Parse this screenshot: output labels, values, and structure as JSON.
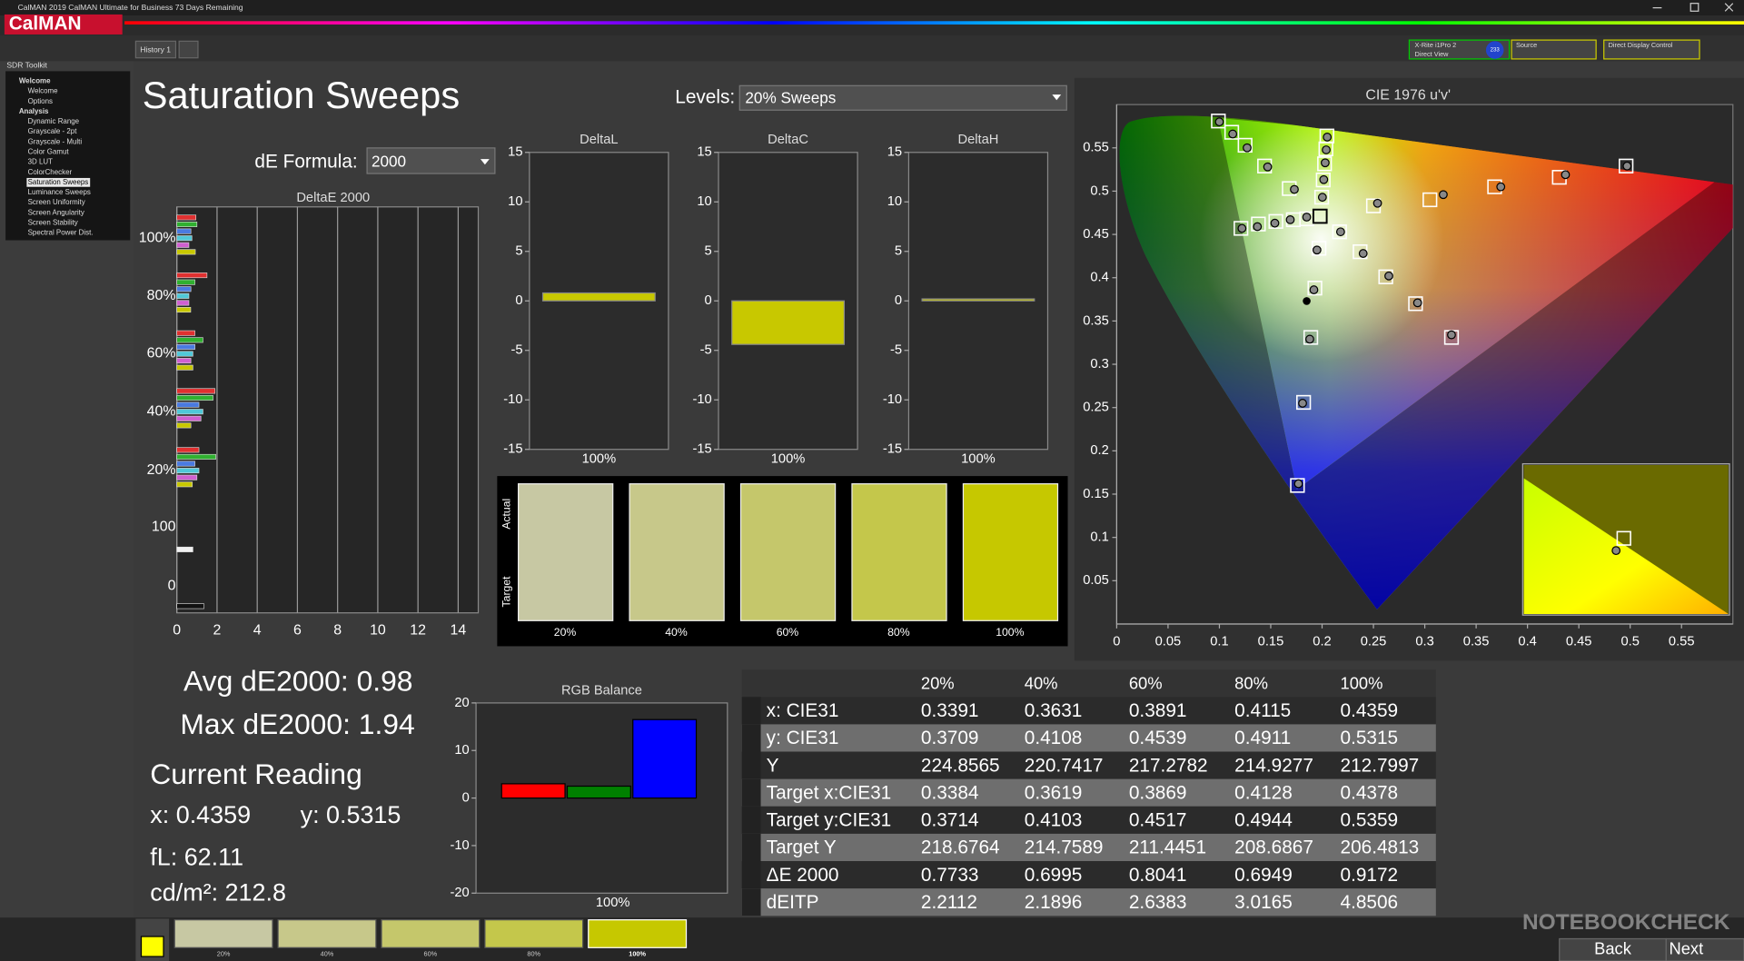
{
  "window": {
    "title": "CalMAN 2019 CalMAN Ultimate for Business 73 Days Remaining",
    "logo": "CalMAN"
  },
  "toolbar": {
    "tab": "History 1",
    "meter": [
      "X-Rite i1Pro 2",
      "Direct View"
    ],
    "meter_id": "233",
    "source": "Source",
    "display": "Direct Display Control"
  },
  "sidebar": {
    "title": "SDR Toolkit",
    "items": [
      {
        "label": "Welcome",
        "heading": true
      },
      {
        "label": "Welcome"
      },
      {
        "label": "Options"
      },
      {
        "label": "Analysis",
        "heading": true
      },
      {
        "label": "Dynamic Range"
      },
      {
        "label": "Grayscale - 2pt"
      },
      {
        "label": "Grayscale - Multi"
      },
      {
        "label": "Color Gamut"
      },
      {
        "label": "3D LUT"
      },
      {
        "label": "ColorChecker"
      },
      {
        "label": "Saturation Sweeps",
        "selected": true
      },
      {
        "label": "Luminance Sweeps"
      },
      {
        "label": "Screen Uniformity"
      },
      {
        "label": "Screen Angularity"
      },
      {
        "label": "Screen Stability"
      },
      {
        "label": "Spectral Power Dist."
      }
    ]
  },
  "page": {
    "title": "Saturation Sweeps",
    "levels_label": "Levels:",
    "levels_value": "20% Sweeps",
    "formula_label": "dE Formula:",
    "formula_value": "2000"
  },
  "deltae_chart": {
    "type": "bar",
    "orientation": "horizontal",
    "title": "DeltaE 2000",
    "xlim": [
      0,
      15
    ],
    "xticks": [
      0,
      2,
      4,
      6,
      8,
      10,
      12,
      14
    ],
    "colors": [
      "#e03030",
      "#30b030",
      "#4a7ae0",
      "#50c8d8",
      "#d060d0",
      "#c8c800"
    ],
    "groups": [
      {
        "label": "100%",
        "values": [
          0.95,
          1.0,
          0.7,
          0.75,
          0.6,
          0.92
        ]
      },
      {
        "label": "80%",
        "values": [
          1.5,
          0.9,
          0.7,
          0.6,
          0.6,
          0.69
        ]
      },
      {
        "label": "60%",
        "values": [
          0.9,
          1.3,
          0.9,
          0.8,
          0.7,
          0.8
        ]
      },
      {
        "label": "40%",
        "values": [
          1.9,
          1.8,
          1.1,
          1.3,
          1.2,
          0.7
        ]
      },
      {
        "label": "20%",
        "values": [
          1.1,
          1.94,
          0.9,
          1.1,
          1.0,
          0.77
        ]
      },
      {
        "label": "100",
        "values": [
          0.8
        ],
        "colors": [
          "#f0f0f0"
        ]
      },
      {
        "label": "0",
        "values": [
          1.35
        ],
        "colors": [
          "#111111"
        ]
      }
    ]
  },
  "delta_charts": [
    {
      "type": "bar",
      "title": "DeltaL",
      "categories": [
        "100%"
      ],
      "values": [
        0.8
      ],
      "color": "#c8c800",
      "ylim": [
        -15,
        15
      ],
      "yticks": [
        15,
        10,
        5,
        0,
        -5,
        -10,
        -15
      ]
    },
    {
      "type": "bar",
      "title": "DeltaC",
      "categories": [
        "100%"
      ],
      "values": [
        -4.4
      ],
      "color": "#c8c800",
      "ylim": [
        -15,
        15
      ],
      "yticks": [
        15,
        10,
        5,
        0,
        -5,
        -10,
        -15
      ]
    },
    {
      "type": "bar",
      "title": "DeltaH",
      "categories": [
        "100%"
      ],
      "values": [
        0.2
      ],
      "color": "#c8c800",
      "ylim": [
        -15,
        15
      ],
      "yticks": [
        15,
        10,
        5,
        0,
        -5,
        -10,
        -15
      ]
    }
  ],
  "swatches": {
    "row_labels": [
      "Actual",
      "Target"
    ],
    "levels": [
      "20%",
      "40%",
      "60%",
      "80%",
      "100%"
    ],
    "colors": [
      "#c7c8a3",
      "#c7c88a",
      "#c5c76b",
      "#c4c74b",
      "#c6c800"
    ]
  },
  "readings": {
    "avg": "Avg dE2000: 0.98",
    "max": "Max dE2000: 1.94",
    "heading": "Current Reading",
    "x": "x: 0.4359",
    "y": "y: 0.5315",
    "fl": "fL: 62.11",
    "cdm2": "cd/m²: 212.8"
  },
  "rgb_balance": {
    "type": "bar",
    "title": "RGB Balance",
    "categories": [
      "100%"
    ],
    "series": [
      {
        "color": "#ff0000",
        "values": [
          3
        ]
      },
      {
        "color": "#008000",
        "values": [
          2.5
        ]
      },
      {
        "color": "#0000ff",
        "values": [
          16.5
        ]
      }
    ],
    "ylim": [
      -20,
      20
    ],
    "yticks": [
      20,
      10,
      0,
      -10,
      -20
    ]
  },
  "cie": {
    "type": "scatter",
    "title": "CIE 1976 u'v'",
    "xlim": [
      0,
      0.6
    ],
    "ylim": [
      0,
      0.6
    ],
    "xticks": [
      0,
      0.05,
      0.1,
      0.15,
      0.2,
      0.25,
      0.3,
      0.35,
      0.4,
      0.45,
      0.5,
      0.55
    ],
    "yticks": [
      0.05,
      0.1,
      0.15,
      0.2,
      0.25,
      0.3,
      0.35,
      0.4,
      0.45,
      0.5,
      0.55
    ],
    "sweeps": [
      {
        "color": "#ff0000",
        "target_u": [
          0.25,
          0.305,
          0.368,
          0.431,
          0.496
        ],
        "target_v": [
          0.483,
          0.49,
          0.505,
          0.516,
          0.529
        ],
        "measured_u": [
          0.254,
          0.318,
          0.374,
          0.437,
          0.497
        ],
        "measured_v": [
          0.486,
          0.496,
          0.505,
          0.519,
          0.529
        ]
      },
      {
        "color": "#00c000",
        "target_u": [
          0.168,
          0.144,
          0.125,
          0.112,
          0.099
        ],
        "target_v": [
          0.503,
          0.529,
          0.553,
          0.568,
          0.581
        ],
        "measured_u": [
          0.173,
          0.147,
          0.127,
          0.113,
          0.1
        ],
        "measured_v": [
          0.502,
          0.528,
          0.55,
          0.566,
          0.58
        ]
      },
      {
        "color": "#0000ff",
        "target_u": [
          0.197,
          0.193,
          0.189,
          0.182,
          0.176
        ],
        "target_v": [
          0.434,
          0.388,
          0.331,
          0.256,
          0.16
        ],
        "measured_u": [
          0.195,
          0.192,
          0.188,
          0.181,
          0.177
        ],
        "measured_v": [
          0.432,
          0.386,
          0.329,
          0.255,
          0.162
        ]
      },
      {
        "color": "#00ffff",
        "target_u": [
          0.185,
          0.172,
          0.155,
          0.138,
          0.121
        ],
        "target_v": [
          0.468,
          0.467,
          0.465,
          0.462,
          0.457
        ],
        "measured_u": [
          0.185,
          0.169,
          0.154,
          0.137,
          0.122
        ],
        "measured_v": [
          0.47,
          0.467,
          0.463,
          0.459,
          0.457
        ]
      },
      {
        "color": "#ff00ff",
        "target_u": [
          0.217,
          0.237,
          0.262,
          0.291,
          0.326
        ],
        "target_v": [
          0.453,
          0.43,
          0.401,
          0.37,
          0.331
        ],
        "measured_u": [
          0.218,
          0.24,
          0.265,
          0.293,
          0.326
        ],
        "measured_v": [
          0.453,
          0.428,
          0.402,
          0.371,
          0.334
        ]
      },
      {
        "color": "#ffff00",
        "target_u": [
          0.1996,
          0.2011,
          0.2024,
          0.2037,
          0.2047
        ],
        "target_v": [
          0.493,
          0.5129,
          0.5316,
          0.5488,
          0.5637
        ],
        "measured_u": [
          0.2003,
          0.2016,
          0.203,
          0.204,
          0.205
        ],
        "measured_v": [
          0.4929,
          0.5133,
          0.5327,
          0.5477,
          0.5624
        ]
      }
    ],
    "white_target": {
      "u": 0.198,
      "v": 0.471
    },
    "reference_point": {
      "u": 0.185,
      "v": 0.373
    }
  },
  "table": {
    "columns": [
      "20%",
      "40%",
      "60%",
      "80%",
      "100%"
    ],
    "rows": [
      {
        "label": "x: CIE31",
        "values": [
          "0.3391",
          "0.3631",
          "0.3891",
          "0.4115",
          "0.4359"
        ]
      },
      {
        "label": "y: CIE31",
        "values": [
          "0.3709",
          "0.4108",
          "0.4539",
          "0.4911",
          "0.5315"
        ]
      },
      {
        "label": "Y",
        "values": [
          "224.8565",
          "220.7417",
          "217.2782",
          "214.9277",
          "212.7997"
        ]
      },
      {
        "label": "Target x:CIE31",
        "values": [
          "0.3384",
          "0.3619",
          "0.3869",
          "0.4128",
          "0.4378"
        ]
      },
      {
        "label": "Target y:CIE31",
        "values": [
          "0.3714",
          "0.4103",
          "0.4517",
          "0.4944",
          "0.5359"
        ]
      },
      {
        "label": "Target Y",
        "values": [
          "218.6764",
          "214.7589",
          "211.4451",
          "208.6867",
          "206.4813"
        ]
      },
      {
        "label": "ΔE 2000",
        "values": [
          "0.7733",
          "0.6995",
          "0.8041",
          "0.6949",
          "0.9172"
        ]
      },
      {
        "label": "dEITP",
        "values": [
          "2.2112",
          "2.1896",
          "2.6383",
          "3.0165",
          "4.8506"
        ]
      }
    ]
  },
  "footer": {
    "back": "Back",
    "next": "Next",
    "watermark": "NOTEBOOKCHECK"
  }
}
